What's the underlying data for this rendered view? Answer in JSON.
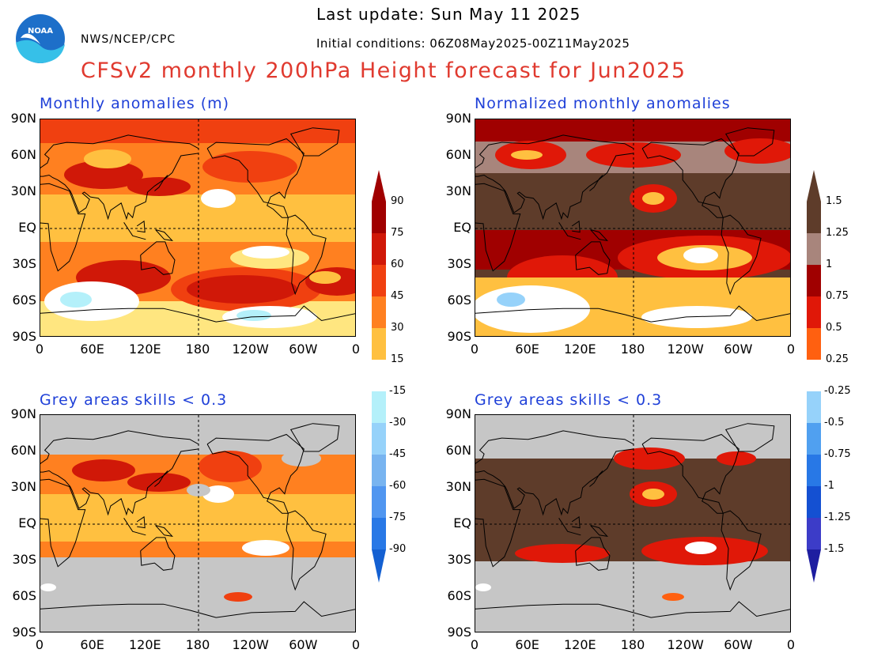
{
  "header": {
    "last_update": "Last update: Sun May 11 2025",
    "organization": "NWS/NCEP/CPC",
    "initial_conditions": "Initial conditions: 06Z08May2025-00Z11May2025",
    "title": "CFSv2 monthly 200hPa Height forecast for Jun2025",
    "logo_text": "NOAA"
  },
  "panels": {
    "top_left_title": "Monthly anomalies (m)",
    "top_right_title": "Normalized monthly anomalies",
    "bottom_left_title": "Grey areas skills < 0.3",
    "bottom_right_title": "Grey areas skills < 0.3"
  },
  "axes": {
    "lat_labels": [
      "90N",
      "60N",
      "30N",
      "EQ",
      "30S",
      "60S",
      "90S"
    ],
    "lon_labels": [
      "0",
      "60E",
      "120E",
      "180",
      "120W",
      "60W",
      "0"
    ]
  },
  "colorbar_left": {
    "positive_labels": [
      "90",
      "75",
      "60",
      "45",
      "30",
      "15"
    ],
    "negative_labels": [
      "-15",
      "-30",
      "-45",
      "-60",
      "-75",
      "-90"
    ]
  },
  "colorbar_right": {
    "positive_labels": [
      "1.5",
      "1.25",
      "1",
      "0.75",
      "0.5",
      "0.25"
    ],
    "negative_labels": [
      "-0.25",
      "-0.5",
      "-0.75",
      "-1",
      "-1.25",
      "-1.5"
    ]
  },
  "colors": {
    "warm": [
      "#ffe680",
      "#ffc040",
      "#ff8020",
      "#f04010",
      "#d01808",
      "#a00000"
    ],
    "cool": [
      "#b4f0fa",
      "#96d2fa",
      "#78b4f0",
      "#5096f0",
      "#2878e6",
      "#1460d2"
    ],
    "norm_warm": [
      "#ffc040",
      "#ff6010",
      "#e01808",
      "#a00000",
      "#a8857c",
      "#5e3c2a"
    ],
    "norm_cool": [
      "#96d2fa",
      "#50a0f0",
      "#2878e6",
      "#1450d2",
      "#3c3cc8",
      "#1e1ea0"
    ],
    "skill_mask": "#c6c6c6",
    "title_red": "#e03a2f",
    "title_blue": "#1f40d8"
  }
}
